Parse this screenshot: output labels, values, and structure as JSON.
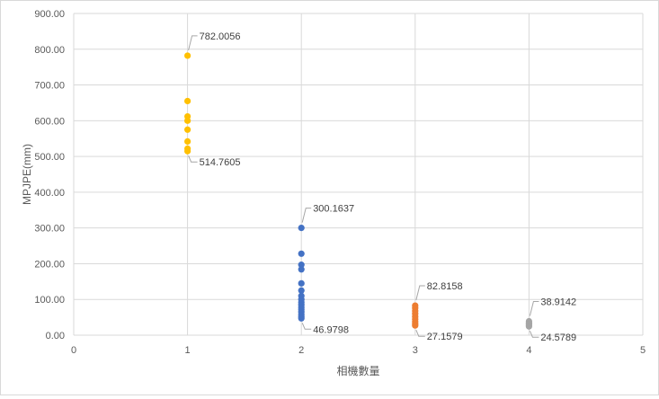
{
  "chart_data": {
    "type": "scatter",
    "title": "",
    "xlabel": "相機數量",
    "ylabel": "MPJPE(mm)",
    "xlim": [
      0,
      5
    ],
    "ylim": [
      0,
      900
    ],
    "x_ticks": [
      "0",
      "1",
      "2",
      "3",
      "4",
      "5"
    ],
    "y_ticks": [
      "0.00",
      "100.00",
      "200.00",
      "300.00",
      "400.00",
      "500.00",
      "600.00",
      "700.00",
      "800.00",
      "900.00"
    ],
    "grid": "vertical and horizontal major gridlines",
    "legend": "none",
    "series": [
      {
        "color": "#FFC000",
        "points": [
          [
            1,
            782.0056
          ],
          [
            1,
            655
          ],
          [
            1,
            612
          ],
          [
            1,
            600
          ],
          [
            1,
            575
          ],
          [
            1,
            542
          ],
          [
            1,
            522
          ],
          [
            1,
            514.7605
          ]
        ]
      },
      {
        "color": "#4472C4",
        "points": [
          [
            2,
            300.1637
          ],
          [
            2,
            228
          ],
          [
            2,
            197
          ],
          [
            2,
            184
          ],
          [
            2,
            145
          ],
          [
            2,
            125
          ],
          [
            2,
            110
          ],
          [
            2,
            100
          ],
          [
            2,
            92
          ],
          [
            2,
            85
          ],
          [
            2,
            78
          ],
          [
            2,
            72
          ],
          [
            2,
            65
          ],
          [
            2,
            58
          ],
          [
            2,
            52
          ],
          [
            2,
            46.9798
          ]
        ]
      },
      {
        "color": "#ED7D31",
        "points": [
          [
            3,
            82.8158
          ],
          [
            3,
            76
          ],
          [
            3,
            68
          ],
          [
            3,
            60
          ],
          [
            3,
            52
          ],
          [
            3,
            45
          ],
          [
            3,
            38
          ],
          [
            3,
            32
          ],
          [
            3,
            27.1579
          ]
        ]
      },
      {
        "color": "#A5A5A5",
        "points": [
          [
            4,
            38.9142
          ],
          [
            4,
            35
          ],
          [
            4,
            31
          ],
          [
            4,
            28
          ],
          [
            4,
            24.5789
          ]
        ]
      }
    ],
    "annotations": [
      {
        "text": "782.0056",
        "x": 1,
        "y": 782.0056,
        "side": "top"
      },
      {
        "text": "514.7605",
        "x": 1,
        "y": 514.7605,
        "side": "bottom"
      },
      {
        "text": "300.1637",
        "x": 2,
        "y": 300.1637,
        "side": "top"
      },
      {
        "text": "46.9798",
        "x": 2,
        "y": 46.9798,
        "side": "bottom"
      },
      {
        "text": "82.8158",
        "x": 3,
        "y": 82.8158,
        "side": "top"
      },
      {
        "text": "27.1579",
        "x": 3,
        "y": 27.1579,
        "side": "bottom"
      },
      {
        "text": "38.9142",
        "x": 4,
        "y": 38.9142,
        "side": "top"
      },
      {
        "text": "24.5789",
        "x": 4,
        "y": 24.5789,
        "side": "bottom"
      }
    ]
  }
}
